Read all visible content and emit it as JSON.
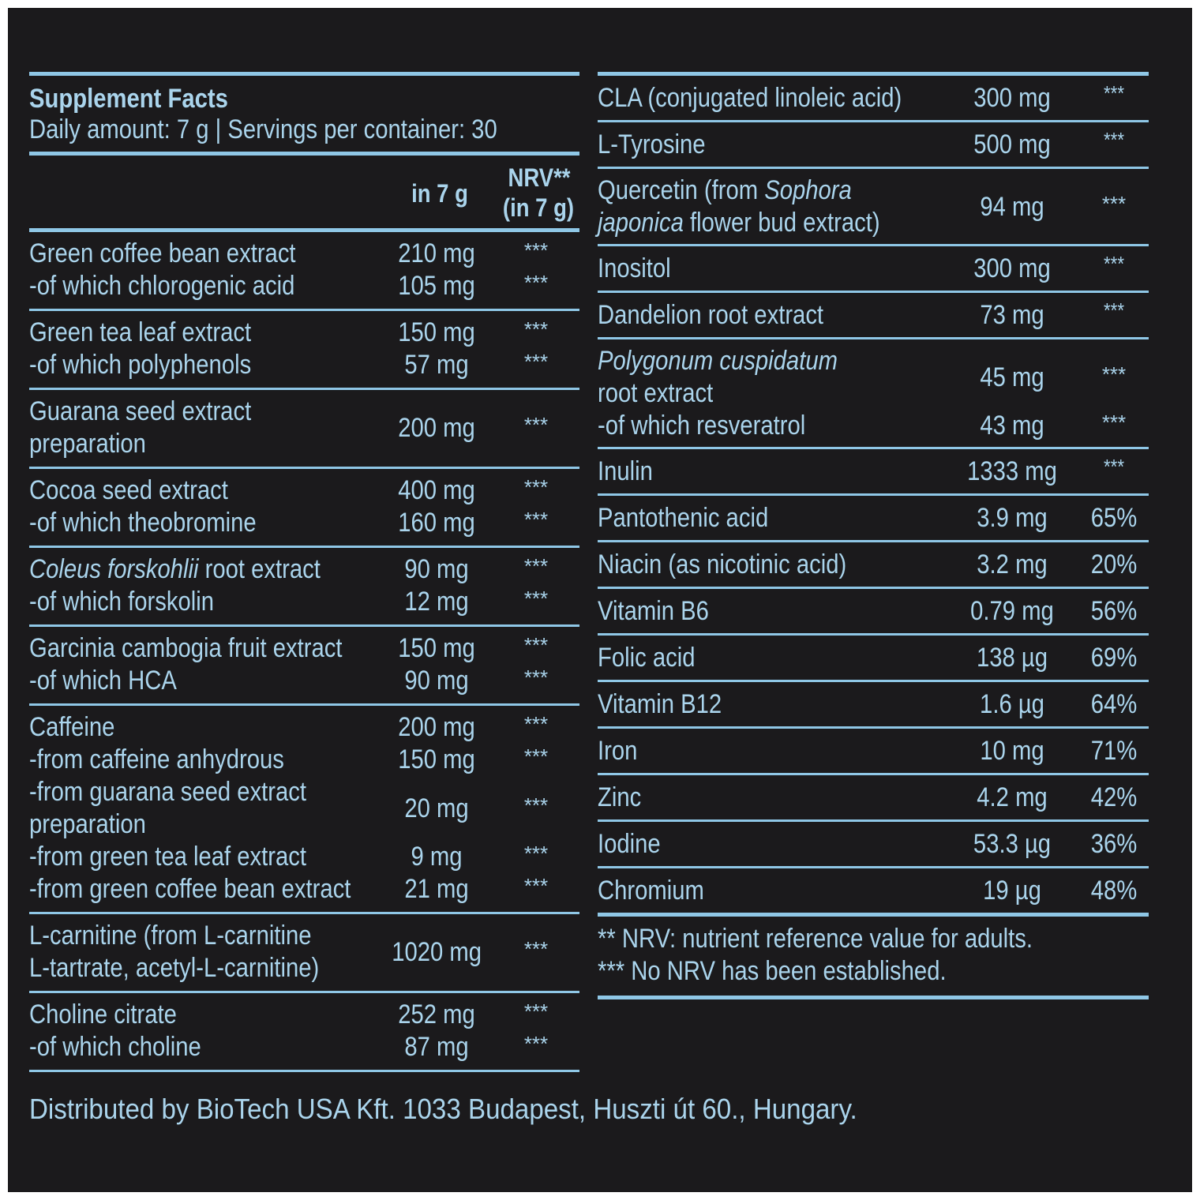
{
  "title": "Supplement Facts",
  "subtitle": "Daily amount: 7 g | Servings per container: 30",
  "columns": {
    "amount": "in 7 g",
    "nrv_line1": "NRV**",
    "nrv_line2": "(in 7 g)"
  },
  "left_groups": [
    {
      "lines": [
        {
          "name": "Green coffee bean extract",
          "amount": "210 mg",
          "nrv": "***"
        },
        {
          "name": "-of which chlorogenic acid",
          "amount": "105 mg",
          "nrv": "***"
        }
      ]
    },
    {
      "lines": [
        {
          "name": "Green tea leaf extract",
          "amount": "150 mg",
          "nrv": "***"
        },
        {
          "name": "-of which polyphenols",
          "amount": "57 mg",
          "nrv": "***"
        }
      ]
    },
    {
      "lines": [
        {
          "name": "Guarana seed extract",
          "amount": "",
          "nrv": ""
        },
        {
          "name": "preparation",
          "amount": "200 mg",
          "nrv": "***",
          "raise": true
        }
      ]
    },
    {
      "lines": [
        {
          "name": "Cocoa seed extract",
          "amount": "400 mg",
          "nrv": "***"
        },
        {
          "name": "-of which theobromine",
          "amount": "160 mg",
          "nrv": "***"
        }
      ]
    },
    {
      "lines": [
        {
          "name_italic": "Coleus forskohlii",
          "name": " root extract",
          "amount": "90 mg",
          "nrv": "***"
        },
        {
          "name": "-of which forskolin",
          "amount": "12 mg",
          "nrv": "***"
        }
      ]
    },
    {
      "lines": [
        {
          "name": "Garcinia cambogia fruit extract",
          "amount": "150 mg",
          "nrv": "***"
        },
        {
          "name": "-of which HCA",
          "amount": "90 mg",
          "nrv": "***"
        }
      ]
    },
    {
      "lines": [
        {
          "name": "Caffeine",
          "amount": "200 mg",
          "nrv": "***"
        },
        {
          "name": "-from caffeine anhydrous",
          "amount": "150 mg",
          "nrv": "***"
        },
        {
          "name": "-from guarana seed extract",
          "amount": "",
          "nrv": ""
        },
        {
          "name": "preparation",
          "amount": "20 mg",
          "nrv": "***",
          "raise": true
        },
        {
          "name": "-from green tea leaf extract",
          "amount": "9 mg",
          "nrv": "***"
        },
        {
          "name": "-from green coffee bean extract",
          "amount": "21 mg",
          "nrv": "***"
        }
      ]
    },
    {
      "lines": [
        {
          "name": "L-carnitine (from L-carnitine",
          "amount": "",
          "nrv": ""
        },
        {
          "name": "L-tartrate, acetyl-L-carnitine)",
          "amount": "1020 mg",
          "nrv": "***",
          "raise": true
        }
      ]
    },
    {
      "lines": [
        {
          "name": "Choline citrate",
          "amount": "252 mg",
          "nrv": "***"
        },
        {
          "name": "-of which choline",
          "amount": "87 mg",
          "nrv": "***"
        }
      ]
    }
  ],
  "right_rows": [
    {
      "name": "CLA (conjugated linoleic acid)",
      "amount": "300 mg",
      "nrv": "***"
    },
    {
      "name": "L-Tyrosine",
      "amount": "500 mg",
      "nrv": "***"
    },
    {
      "multi": true,
      "lines": [
        {
          "name": "Quercetin (from ",
          "name_italic": "Sophora",
          "amount": "",
          "nrv": ""
        },
        {
          "name_italic": "japonica",
          "name": " flower bud extract)",
          "amount": "94 mg",
          "nrv": "***",
          "raise": true
        }
      ]
    },
    {
      "name": "Inositol",
      "amount": "300 mg",
      "nrv": "***"
    },
    {
      "name": "Dandelion root extract",
      "amount": "73 mg",
      "nrv": "***"
    },
    {
      "multi": true,
      "lines": [
        {
          "name_italic": "Polygonum cuspidatum",
          "name": "",
          "amount": "",
          "nrv": ""
        },
        {
          "name": "root extract",
          "amount": "45 mg",
          "nrv": "***",
          "raise": true
        },
        {
          "name": "-of which resveratrol",
          "amount": "43 mg",
          "nrv": "***"
        }
      ]
    },
    {
      "name": "Inulin",
      "amount": "1333 mg",
      "nrv": "***"
    },
    {
      "name": "Pantothenic acid",
      "amount": "3.9 mg",
      "nrv": "65%"
    },
    {
      "name": "Niacin (as nicotinic acid)",
      "amount": "3.2 mg",
      "nrv": "20%"
    },
    {
      "name": "Vitamin B6",
      "amount": "0.79 mg",
      "nrv": "56%"
    },
    {
      "name": "Folic acid",
      "amount": "138 µg",
      "nrv": "69%"
    },
    {
      "name": "Vitamin B12",
      "amount": "1.6 µg",
      "nrv": "64%"
    },
    {
      "name": "Iron",
      "amount": "10 mg",
      "nrv": "71%"
    },
    {
      "name": "Zinc",
      "amount": "4.2 mg",
      "nrv": "42%"
    },
    {
      "name": "Iodine",
      "amount": "53.3 µg",
      "nrv": "36%"
    },
    {
      "name": "Chromium",
      "amount": "19 µg",
      "nrv": "48%"
    }
  ],
  "footnotes": [
    "** NRV: nutrient reference value for adults.",
    "*** No NRV has been established."
  ],
  "distributor": "Distributed by BioTech USA Kft. 1033 Budapest, Huszti út 60., Hungary."
}
